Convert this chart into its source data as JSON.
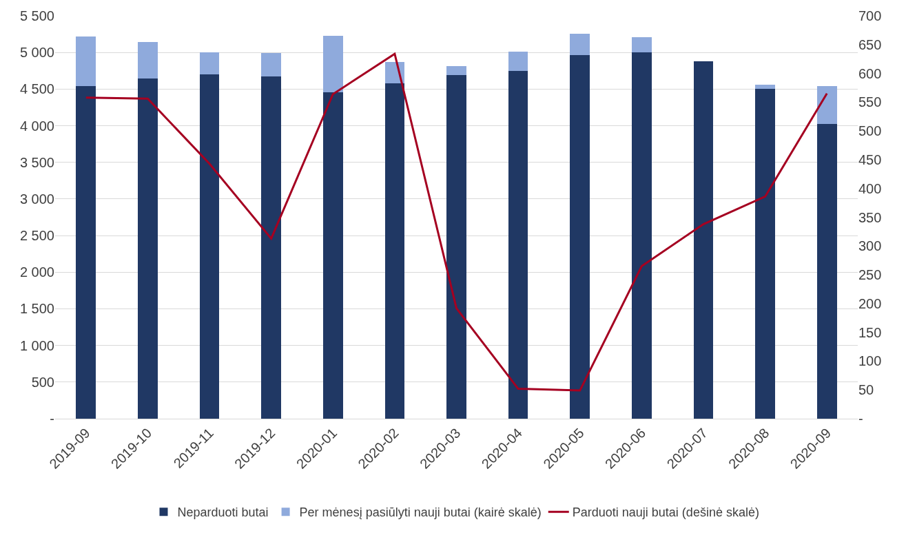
{
  "chart_data": {
    "type": "bar",
    "stacked": true,
    "categories": [
      "2019-09",
      "2019-10",
      "2019-11",
      "2019-12",
      "2020-01",
      "2020-02",
      "2020-03",
      "2020-04",
      "2020-05",
      "2020-06",
      "2020-07",
      "2020-08",
      "2020-09"
    ],
    "series": [
      {
        "name": "Neparduoti butai",
        "color": "#203864",
        "values": [
          4540,
          4640,
          4700,
          4670,
          4460,
          4580,
          4690,
          4750,
          4960,
          5000,
          4880,
          4500,
          4020
        ]
      },
      {
        "name": "Per mėnesį pasiūlyti nauji butai (kairė skalė)",
        "color": "#8faadc",
        "values": [
          680,
          500,
          300,
          320,
          770,
          290,
          120,
          260,
          300,
          210,
          0,
          60,
          520
        ]
      },
      {
        "name": "Parduoti nauji butai (dešinė skalė)",
        "color": "#a50021",
        "type": "line",
        "axis": "y2",
        "values": [
          558,
          556,
          443,
          313,
          564,
          634,
          192,
          52,
          49,
          265,
          338,
          386,
          565
        ]
      }
    ],
    "ylim": [
      0,
      5500
    ],
    "yticks": [
      {
        "value": 0,
        "label": "-"
      },
      {
        "value": 500,
        "label": "500"
      },
      {
        "value": 1000,
        "label": "1 000"
      },
      {
        "value": 1500,
        "label": "1 500"
      },
      {
        "value": 2000,
        "label": "2 000"
      },
      {
        "value": 2500,
        "label": "2 500"
      },
      {
        "value": 3000,
        "label": "3 000"
      },
      {
        "value": 3500,
        "label": "3 500"
      },
      {
        "value": 4000,
        "label": "4 000"
      },
      {
        "value": 4500,
        "label": "4 500"
      },
      {
        "value": 5000,
        "label": "5 000"
      },
      {
        "value": 5500,
        "label": "5 500"
      }
    ],
    "y2lim": [
      0,
      700
    ],
    "y2ticks": [
      {
        "value": 0,
        "label": "-"
      },
      50,
      100,
      150,
      200,
      250,
      300,
      350,
      400,
      450,
      500,
      550,
      600,
      650,
      700
    ],
    "grid": "y",
    "legend": "bottom",
    "marker": "none",
    "line_style": "solid"
  }
}
